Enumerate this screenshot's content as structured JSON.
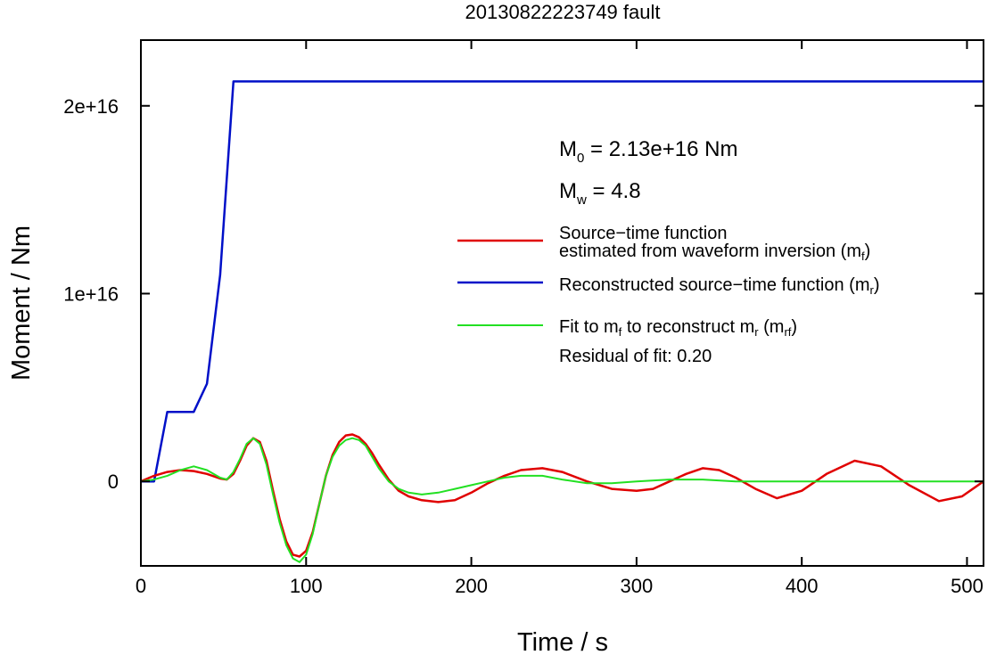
{
  "chart_data": {
    "type": "line",
    "title": "20130822223749 fault",
    "xlabel": "Time / s",
    "ylabel": "Moment / Nm",
    "xlim": [
      0,
      510
    ],
    "ylim": [
      -4500000000000000.0,
      2.35e+16
    ],
    "x_ticks": [
      0,
      100,
      200,
      300,
      400,
      500
    ],
    "x_tick_labels": [
      "0",
      "100",
      "200",
      "300",
      "400",
      "500"
    ],
    "y_ticks": [
      0,
      1e+16,
      2e+16
    ],
    "y_tick_labels": [
      "0",
      "1e+16",
      "2e+16"
    ],
    "grid": false,
    "legend_placement": "right",
    "annotations": {
      "m0": {
        "main": "M",
        "sub": "0",
        "tail": " = 2.13e+16 Nm"
      },
      "mw": {
        "main": "M",
        "sub": "w",
        "tail": " = 4.8"
      },
      "residual": "Residual of fit: 0.20"
    },
    "legend": [
      {
        "color": "#e00000",
        "line1": "Source−time function",
        "line2_pre": "estimated from waveform inversion (m",
        "line2_sub": "f",
        "line2_post": ")"
      },
      {
        "color": "#0010c8",
        "line1_pre": "Reconstructed source−time function (m",
        "line1_sub": "r",
        "line1_post": ")"
      },
      {
        "color": "#22e022",
        "pre": "Fit to m",
        "s1": "f",
        "mid": " to reconstruct m",
        "s2": "r",
        "mid2": " (m",
        "s3": "rf",
        "post": ")"
      }
    ],
    "series": [
      {
        "name": "Reconstructed source−time function (mr)",
        "color": "#0010c8",
        "x": [
          0,
          8,
          16,
          32,
          40,
          48,
          56,
          510
        ],
        "y": [
          0,
          0,
          3700000000000000.0,
          3700000000000000.0,
          5200000000000000.0,
          1.1e+16,
          2.13e+16,
          2.13e+16
        ]
      },
      {
        "name": "Source−time function estimated from waveform inversion (mf)",
        "color": "#e00000",
        "x": [
          0,
          8,
          16,
          24,
          32,
          40,
          48,
          52,
          56,
          60,
          64,
          68,
          72,
          76,
          80,
          84,
          88,
          92,
          96,
          100,
          104,
          108,
          112,
          116,
          120,
          124,
          128,
          132,
          136,
          140,
          144,
          150,
          156,
          162,
          170,
          180,
          190,
          200,
          210,
          220,
          230,
          243,
          255,
          270,
          285,
          300,
          310,
          320,
          330,
          340,
          350,
          360,
          372,
          385,
          400,
          415,
          432,
          448,
          465,
          483,
          497,
          510
        ],
        "y": [
          0,
          300000000000000.0,
          500000000000000.0,
          600000000000000.0,
          550000000000000.0,
          400000000000000.0,
          150000000000000.0,
          100000000000000.0,
          400000000000000.0,
          1100000000000000.0,
          1900000000000000.0,
          2300000000000000.0,
          2100000000000000.0,
          1100000000000000.0,
          -500000000000000.0,
          -2000000000000000.0,
          -3200000000000000.0,
          -3900000000000000.0,
          -4000000000000000.0,
          -3700000000000000.0,
          -2700000000000000.0,
          -1200000000000000.0,
          300000000000000.0,
          1400000000000000.0,
          2100000000000000.0,
          2450000000000000.0,
          2500000000000000.0,
          2350000000000000.0,
          2000000000000000.0,
          1500000000000000.0,
          900000000000000.0,
          100000000000000.0,
          -500000000000000.0,
          -800000000000000.0,
          -1000000000000000.0,
          -1100000000000000.0,
          -1000000000000000.0,
          -600000000000000.0,
          -100000000000000.0,
          300000000000000.0,
          600000000000000.0,
          700000000000000.0,
          500000000000000.0,
          0,
          -400000000000000.0,
          -500000000000000.0,
          -400000000000000.0,
          0,
          400000000000000.0,
          700000000000000.0,
          600000000000000.0,
          200000000000000.0,
          -400000000000000.0,
          -900000000000000.0,
          -500000000000000.0,
          400000000000000.0,
          1100000000000000.0,
          800000000000000.0,
          -200000000000000.0,
          -1050000000000000.0,
          -800000000000000.0,
          0
        ]
      },
      {
        "name": "Fit to mf to reconstruct mr (mrf)",
        "color": "#22e022",
        "x": [
          0,
          8,
          16,
          24,
          32,
          40,
          48,
          52,
          56,
          60,
          64,
          68,
          72,
          76,
          80,
          84,
          88,
          92,
          96,
          100,
          104,
          108,
          112,
          116,
          120,
          124,
          128,
          132,
          136,
          140,
          144,
          150,
          156,
          162,
          170,
          180,
          190,
          200,
          210,
          220,
          230,
          243,
          255,
          270,
          285,
          300,
          320,
          340,
          360,
          380,
          400,
          450,
          510
        ],
        "y": [
          0,
          100000000000000.0,
          300000000000000.0,
          600000000000000.0,
          800000000000000.0,
          600000000000000.0,
          200000000000000.0,
          100000000000000.0,
          500000000000000.0,
          1200000000000000.0,
          2000000000000000.0,
          2300000000000000.0,
          2000000000000000.0,
          900000000000000.0,
          -700000000000000.0,
          -2200000000000000.0,
          -3400000000000000.0,
          -4100000000000000.0,
          -4300000000000000.0,
          -3900000000000000.0,
          -2800000000000000.0,
          -1200000000000000.0,
          300000000000000.0,
          1300000000000000.0,
          1900000000000000.0,
          2200000000000000.0,
          2300000000000000.0,
          2200000000000000.0,
          1900000000000000.0,
          1300000000000000.0,
          700000000000000.0,
          0,
          -400000000000000.0,
          -600000000000000.0,
          -700000000000000.0,
          -600000000000000.0,
          -400000000000000.0,
          -200000000000000.0,
          0,
          200000000000000.0,
          300000000000000.0,
          300000000000000.0,
          100000000000000.0,
          -100000000000000.0,
          -100000000000000.0,
          0,
          100000000000000.0,
          100000000000000.0,
          0,
          0,
          0,
          0,
          0
        ]
      }
    ]
  }
}
